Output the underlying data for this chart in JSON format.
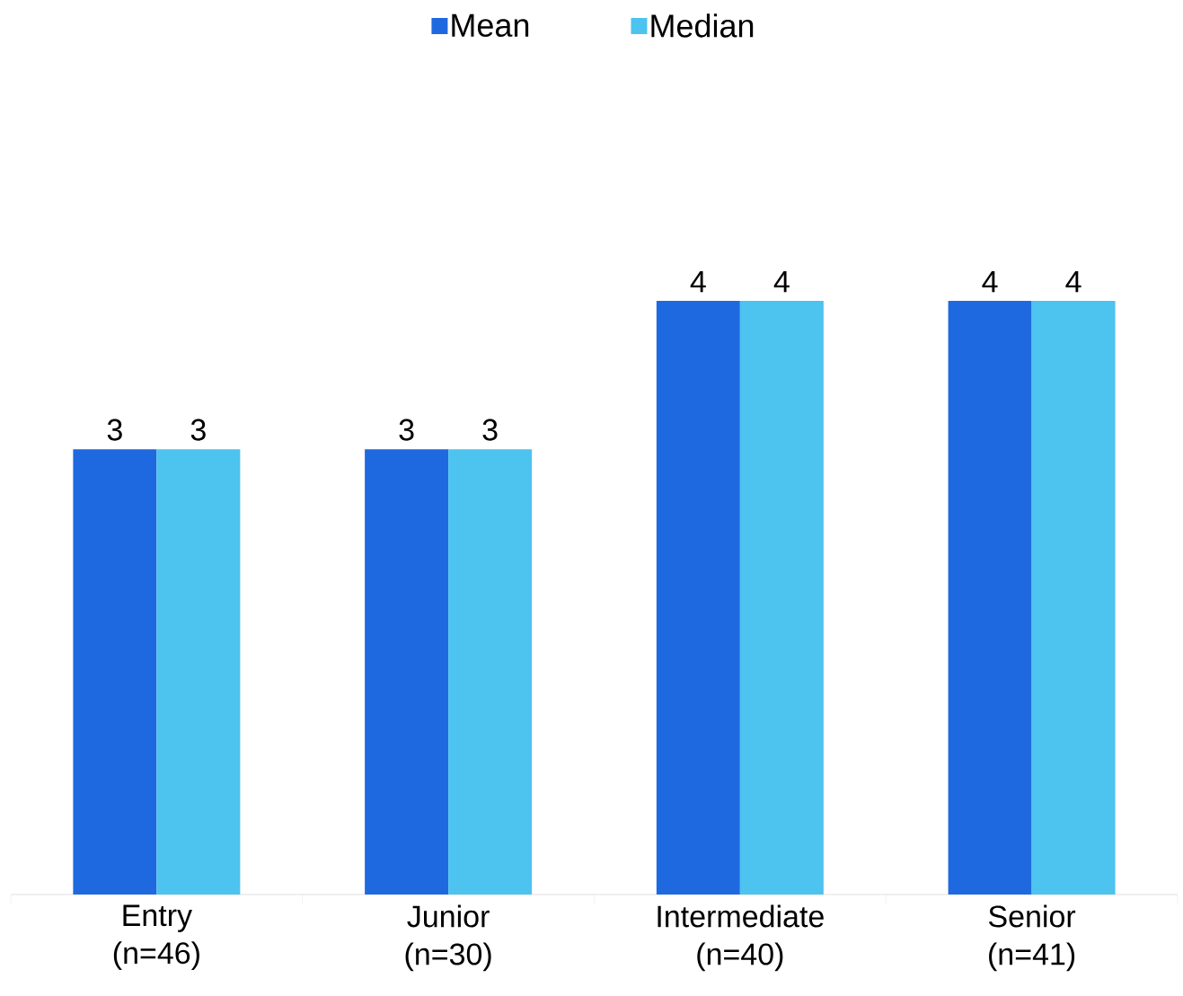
{
  "chart_data": {
    "type": "bar",
    "categories": [
      "Entry (n=46)",
      "Junior (n=30)",
      "Intermediate (n=40)",
      "Senior (n=41)"
    ],
    "series": [
      {
        "name": "Mean",
        "color": "#1f69e0",
        "values": [
          3,
          3,
          4,
          4
        ]
      },
      {
        "name": "Median",
        "color": "#4dc3ef",
        "values": [
          3,
          3,
          4,
          4
        ]
      }
    ],
    "data_labels": true,
    "legend": "top"
  }
}
